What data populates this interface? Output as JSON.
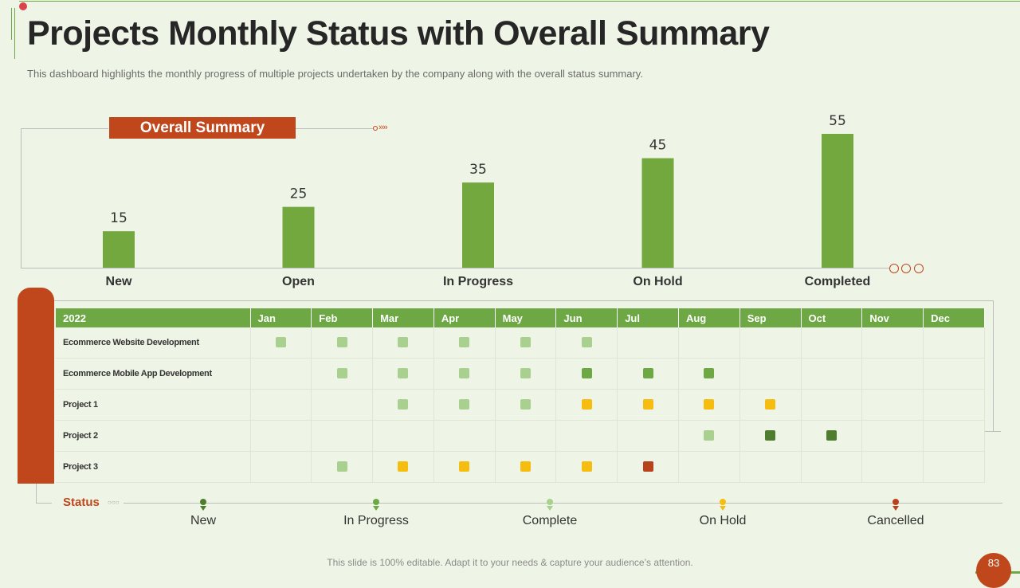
{
  "title": "Projects Monthly Status with Overall Summary",
  "subtitle": "This dashboard highlights the monthly progress of multiple projects undertaken by the company along with the overall  status summary.",
  "summary_tag": "Overall Summary",
  "colors": {
    "new": "#4e7d2e",
    "in_progress": "#6ea845",
    "complete": "#a9d08e",
    "on_hold": "#f5bd0f",
    "cancelled": "#b8421c",
    "bar": "#72a83e",
    "accent": "#c0461c"
  },
  "chart_data": {
    "type": "bar",
    "title": "Overall Summary",
    "categories": [
      "New",
      "Open",
      "In Progress",
      "On Hold",
      "Completed"
    ],
    "values": [
      15,
      25,
      35,
      45,
      55
    ],
    "ylim": [
      0,
      55
    ],
    "grid": false,
    "legend": "none"
  },
  "table": {
    "year_label": "2022",
    "months": [
      "Jan",
      "Feb",
      "Mar",
      "Apr",
      "May",
      "Jun",
      "Jul",
      "Aug",
      "Sep",
      "Oct",
      "Nov",
      "Dec"
    ],
    "rows": [
      {
        "name": "Ecommerce Website Development",
        "status": [
          "complete",
          "complete",
          "complete",
          "complete",
          "complete",
          "complete",
          "",
          "",
          "",
          "",
          "",
          ""
        ]
      },
      {
        "name": "Ecommerce Mobile App Development",
        "status": [
          "",
          "complete",
          "complete",
          "complete",
          "complete",
          "in_progress",
          "in_progress",
          "in_progress",
          "",
          "",
          "",
          ""
        ]
      },
      {
        "name": "Project 1",
        "status": [
          "",
          "",
          "complete",
          "complete",
          "complete",
          "on_hold",
          "on_hold",
          "on_hold",
          "on_hold",
          "",
          "",
          ""
        ]
      },
      {
        "name": "Project 2",
        "status": [
          "",
          "",
          "",
          "",
          "",
          "",
          "",
          "complete",
          "new",
          "new",
          "",
          ""
        ]
      },
      {
        "name": "Project 3",
        "status": [
          "",
          "complete",
          "on_hold",
          "on_hold",
          "on_hold",
          "on_hold",
          "cancelled",
          "",
          "",
          "",
          "",
          ""
        ]
      }
    ]
  },
  "legend": {
    "label": "Status",
    "items": [
      {
        "label": "New",
        "key": "new"
      },
      {
        "label": "In Progress",
        "key": "in_progress"
      },
      {
        "label": "Complete",
        "key": "complete"
      },
      {
        "label": "On Hold",
        "key": "on_hold"
      },
      {
        "label": "Cancelled",
        "key": "cancelled"
      }
    ]
  },
  "footer": "This slide is 100% editable. Adapt it to your needs & capture your audience’s attention.",
  "page_number": "83"
}
